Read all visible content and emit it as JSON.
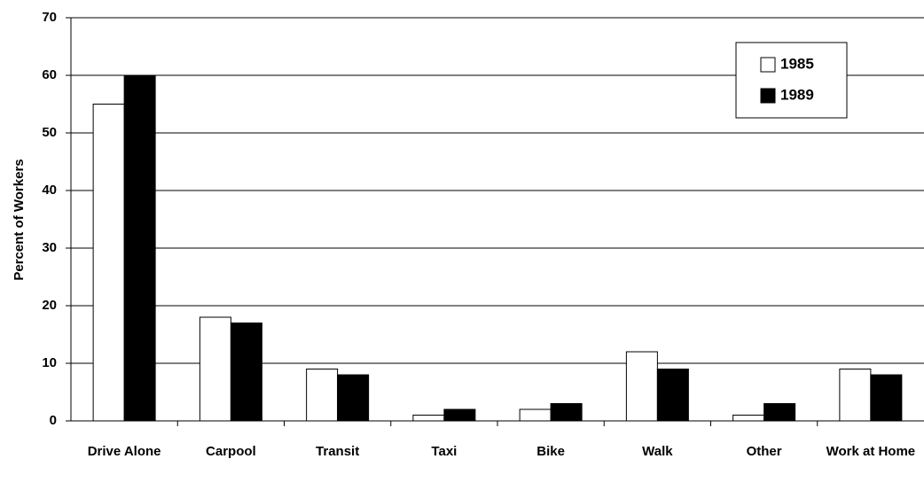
{
  "chart_data": {
    "type": "bar",
    "y_label": "Percent of Workers",
    "categories": [
      "Drive Alone",
      "Carpool",
      "Transit",
      "Taxi",
      "Bike",
      "Walk",
      "Other",
      "Work at Home"
    ],
    "series": [
      {
        "name": "1985",
        "color": "#ffffff",
        "values": [
          55,
          18,
          9,
          1,
          2,
          12,
          1,
          9
        ]
      },
      {
        "name": "1989",
        "color": "#000000",
        "values": [
          60,
          17,
          8,
          2,
          3,
          9,
          3,
          8
        ]
      }
    ],
    "ylim": [
      0,
      70
    ],
    "yticks": [
      0,
      10,
      20,
      30,
      40,
      50,
      60,
      70
    ],
    "grid": true,
    "legend": "top-right"
  }
}
